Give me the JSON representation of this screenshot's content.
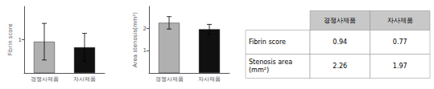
{
  "chart_data": [
    {
      "type": "bar",
      "ylabel": "Fibrin score",
      "categories": [
        "경쟁사제품",
        "자사제품"
      ],
      "values": [
        0.94,
        0.77
      ],
      "errors": [
        0.55,
        0.42
      ],
      "colors": [
        "#b0b0b0",
        "#101010"
      ],
      "ylim": [
        0,
        2
      ],
      "yticks": [
        1
      ],
      "grid": false
    },
    {
      "type": "bar",
      "ylabel": "Area stenosis(mm²)",
      "categories": [
        "경쟁사제품",
        "자사제품"
      ],
      "values": [
        2.26,
        1.97
      ],
      "errors": [
        0.28,
        0.22
      ],
      "colors": [
        "#b0b0b0",
        "#101010"
      ],
      "ylim": [
        0,
        3
      ],
      "yticks": [
        1,
        2
      ],
      "grid": false
    },
    {
      "type": "table",
      "columns": [
        "경쟁사제품",
        "자사제품"
      ],
      "rows": [
        "Fibrin score",
        "Stenosis area\n(mm²)"
      ],
      "cells": [
        [
          0.94,
          0.77
        ],
        [
          2.26,
          1.97
        ]
      ],
      "color": "#c8c8c8"
    }
  ]
}
